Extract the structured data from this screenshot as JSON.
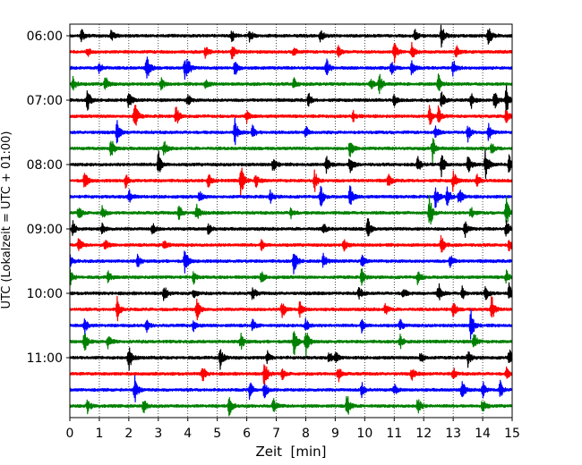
{
  "chart_data": {
    "type": "line",
    "title": "",
    "xlabel": "Zeit  [min]",
    "ylabel": "UTC (Lokalzeit = UTC + 01:00)",
    "xlim": [
      0,
      15
    ],
    "x_ticks": [
      0,
      1,
      2,
      3,
      4,
      5,
      6,
      7,
      8,
      9,
      10,
      11,
      12,
      13,
      14,
      15
    ],
    "y_tick_labels": [
      "06:00",
      "07:00",
      "08:00",
      "09:00",
      "10:00",
      "11:00"
    ],
    "grid": "vertical dotted",
    "trace_interval_min": 15,
    "trace_colors": [
      "#000000",
      "#ff0000",
      "#0000ff",
      "#008000"
    ],
    "traces": [
      {
        "start": "06:00",
        "color": "#000000",
        "events": [
          [
            0.4,
            0.5
          ],
          [
            1.4,
            0.5
          ],
          [
            5.5,
            0.5
          ],
          [
            6.1,
            0.5
          ],
          [
            8.5,
            0.6
          ],
          [
            11.7,
            0.5
          ],
          [
            12.6,
            1.0
          ],
          [
            14.2,
            0.9
          ]
        ]
      },
      {
        "start": "06:15",
        "color": "#ff0000",
        "events": [
          [
            0.6,
            0.4
          ],
          [
            4.6,
            0.5
          ],
          [
            5.5,
            0.6
          ],
          [
            7.6,
            0.5
          ],
          [
            9.1,
            0.5
          ],
          [
            11.0,
            0.9
          ],
          [
            11.6,
            0.8
          ],
          [
            13.1,
            0.6
          ]
        ]
      },
      {
        "start": "06:30",
        "color": "#0000ff",
        "events": [
          [
            1.0,
            0.6
          ],
          [
            2.6,
            1.3
          ],
          [
            3.9,
            0.8
          ],
          [
            4.0,
            0.6
          ],
          [
            5.6,
            0.7
          ],
          [
            8.7,
            0.8
          ],
          [
            10.9,
            0.6
          ],
          [
            11.6,
            0.7
          ],
          [
            13.0,
            0.7
          ]
        ]
      },
      {
        "start": "06:45",
        "color": "#008000",
        "events": [
          [
            0.1,
            0.7
          ],
          [
            1.2,
            0.7
          ],
          [
            3.1,
            0.5
          ],
          [
            4.6,
            0.5
          ],
          [
            7.6,
            0.5
          ],
          [
            10.2,
            0.5
          ],
          [
            10.5,
            0.8
          ],
          [
            12.5,
            0.8
          ]
        ]
      },
      {
        "start": "07:00",
        "color": "#000000",
        "events": [
          [
            0.6,
            1.0
          ],
          [
            2.0,
            0.7
          ],
          [
            4.0,
            0.6
          ],
          [
            8.1,
            0.6
          ],
          [
            11.0,
            0.5
          ],
          [
            12.6,
            0.8
          ],
          [
            13.6,
            0.8
          ],
          [
            14.4,
            0.8
          ],
          [
            14.8,
            1.2
          ]
        ]
      },
      {
        "start": "07:15",
        "color": "#ff0000",
        "events": [
          [
            2.2,
            1.4
          ],
          [
            3.6,
            0.9
          ],
          [
            6.0,
            0.6
          ],
          [
            9.6,
            0.5
          ],
          [
            12.2,
            0.9
          ],
          [
            12.5,
            0.8
          ],
          [
            14.8,
            0.6
          ]
        ]
      },
      {
        "start": "07:30",
        "color": "#0000ff",
        "events": [
          [
            1.6,
            0.9
          ],
          [
            5.6,
            1.1
          ],
          [
            6.2,
            0.6
          ],
          [
            8.0,
            0.5
          ],
          [
            12.4,
            0.6
          ],
          [
            13.5,
            0.7
          ],
          [
            14.2,
            0.8
          ]
        ]
      },
      {
        "start": "07:45",
        "color": "#008000",
        "events": [
          [
            1.4,
            1.0
          ],
          [
            3.2,
            0.6
          ],
          [
            9.5,
            0.8
          ],
          [
            12.3,
            1.1
          ],
          [
            14.3,
            0.5
          ]
        ]
      },
      {
        "start": "08:00",
        "color": "#000000",
        "events": [
          [
            3.0,
            1.2
          ],
          [
            6.9,
            0.7
          ],
          [
            8.7,
            0.8
          ],
          [
            9.5,
            0.8
          ],
          [
            11.8,
            0.7
          ],
          [
            12.6,
            1.0
          ],
          [
            13.5,
            1.0
          ],
          [
            14.1,
            1.4
          ],
          [
            14.9,
            0.8
          ]
        ]
      },
      {
        "start": "08:15",
        "color": "#ff0000",
        "events": [
          [
            0.5,
            0.8
          ],
          [
            1.9,
            0.6
          ],
          [
            4.7,
            0.6
          ],
          [
            5.8,
            1.4
          ],
          [
            6.3,
            0.6
          ],
          [
            8.3,
            0.9
          ],
          [
            10.8,
            0.6
          ],
          [
            13.0,
            0.9
          ],
          [
            13.8,
            0.5
          ]
        ]
      },
      {
        "start": "08:30",
        "color": "#0000ff",
        "events": [
          [
            2.0,
            0.7
          ],
          [
            4.4,
            0.5
          ],
          [
            6.8,
            0.5
          ],
          [
            8.5,
            1.0
          ],
          [
            9.5,
            1.2
          ],
          [
            12.4,
            1.0
          ],
          [
            12.8,
            0.9
          ],
          [
            13.2,
            0.8
          ]
        ]
      },
      {
        "start": "08:45",
        "color": "#008000",
        "events": [
          [
            0.3,
            0.7
          ],
          [
            1.1,
            0.6
          ],
          [
            3.7,
            0.7
          ],
          [
            4.3,
            0.8
          ],
          [
            7.5,
            0.5
          ],
          [
            12.2,
            1.4
          ],
          [
            13.6,
            0.5
          ],
          [
            14.8,
            1.3
          ]
        ]
      },
      {
        "start": "09:00",
        "color": "#000000",
        "events": [
          [
            0.1,
            0.6
          ],
          [
            1.1,
            0.5
          ],
          [
            2.8,
            0.5
          ],
          [
            4.7,
            0.5
          ],
          [
            8.6,
            0.5
          ],
          [
            10.1,
            1.0
          ],
          [
            13.4,
            0.7
          ],
          [
            14.8,
            0.8
          ]
        ]
      },
      {
        "start": "09:15",
        "color": "#ff0000",
        "events": [
          [
            0.3,
            0.6
          ],
          [
            1.2,
            0.5
          ],
          [
            3.2,
            0.6
          ],
          [
            6.5,
            0.5
          ],
          [
            9.3,
            0.5
          ],
          [
            12.6,
            0.9
          ],
          [
            14.9,
            0.5
          ]
        ]
      },
      {
        "start": "09:30",
        "color": "#0000ff",
        "events": [
          [
            0.0,
            0.5
          ],
          [
            2.3,
            0.5
          ],
          [
            3.9,
            1.1
          ],
          [
            7.6,
            1.2
          ],
          [
            8.6,
            0.6
          ],
          [
            9.9,
            0.5
          ],
          [
            12.9,
            0.6
          ]
        ]
      },
      {
        "start": "09:45",
        "color": "#008000",
        "events": [
          [
            0.0,
            0.8
          ],
          [
            1.3,
            0.5
          ],
          [
            4.2,
            0.5
          ],
          [
            6.5,
            0.5
          ],
          [
            9.9,
            0.7
          ],
          [
            11.8,
            0.6
          ],
          [
            14.8,
            0.6
          ]
        ]
      },
      {
        "start": "10:00",
        "color": "#000000",
        "events": [
          [
            3.2,
            0.8
          ],
          [
            4.2,
            0.5
          ],
          [
            6.2,
            0.6
          ],
          [
            9.8,
            0.6
          ],
          [
            11.3,
            0.5
          ],
          [
            12.5,
            0.9
          ],
          [
            13.3,
            0.6
          ],
          [
            14.1,
            0.7
          ],
          [
            14.9,
            0.8
          ]
        ]
      },
      {
        "start": "10:15",
        "color": "#ff0000",
        "events": [
          [
            1.6,
            1.1
          ],
          [
            4.3,
            1.1
          ],
          [
            7.2,
            0.8
          ],
          [
            7.8,
            0.7
          ],
          [
            10.7,
            0.6
          ],
          [
            13.0,
            0.6
          ],
          [
            14.3,
            1.2
          ]
        ]
      },
      {
        "start": "10:30",
        "color": "#0000ff",
        "events": [
          [
            0.5,
            0.8
          ],
          [
            2.6,
            0.5
          ],
          [
            4.2,
            0.6
          ],
          [
            6.2,
            0.5
          ],
          [
            8.0,
            0.6
          ],
          [
            9.9,
            0.6
          ],
          [
            11.2,
            0.5
          ],
          [
            13.6,
            1.4
          ]
        ]
      },
      {
        "start": "10:45",
        "color": "#008000",
        "events": [
          [
            0.5,
            1.0
          ],
          [
            1.3,
            0.6
          ],
          [
            5.8,
            0.7
          ],
          [
            7.6,
            1.2
          ],
          [
            8.0,
            1.2
          ],
          [
            11.2,
            0.6
          ],
          [
            13.7,
            0.8
          ]
        ]
      },
      {
        "start": "11:00",
        "color": "#000000",
        "events": [
          [
            2.0,
            1.2
          ],
          [
            5.1,
            0.9
          ],
          [
            6.7,
            0.5
          ],
          [
            8.8,
            0.6
          ],
          [
            9.0,
            0.5
          ],
          [
            11.9,
            0.6
          ],
          [
            13.5,
            0.7
          ],
          [
            14.9,
            0.8
          ]
        ]
      },
      {
        "start": "11:15",
        "color": "#ff0000",
        "events": [
          [
            4.5,
            0.7
          ],
          [
            6.6,
            1.4
          ],
          [
            7.2,
            0.5
          ],
          [
            9.1,
            0.7
          ],
          [
            11.6,
            0.5
          ],
          [
            13.0,
            0.5
          ],
          [
            14.8,
            0.5
          ]
        ]
      },
      {
        "start": "11:30",
        "color": "#0000ff",
        "events": [
          [
            2.2,
            1.1
          ],
          [
            6.1,
            0.8
          ],
          [
            6.6,
            0.7
          ],
          [
            9.9,
            0.6
          ],
          [
            11.0,
            0.5
          ],
          [
            13.3,
            0.8
          ],
          [
            14.0,
            0.8
          ],
          [
            14.6,
            0.9
          ]
        ]
      },
      {
        "start": "11:45",
        "color": "#008000",
        "events": [
          [
            0.6,
            0.6
          ],
          [
            2.5,
            0.6
          ],
          [
            5.4,
            0.9
          ],
          [
            6.9,
            0.7
          ],
          [
            9.4,
            1.1
          ],
          [
            11.8,
            0.8
          ],
          [
            14.0,
            0.6
          ]
        ]
      }
    ]
  }
}
